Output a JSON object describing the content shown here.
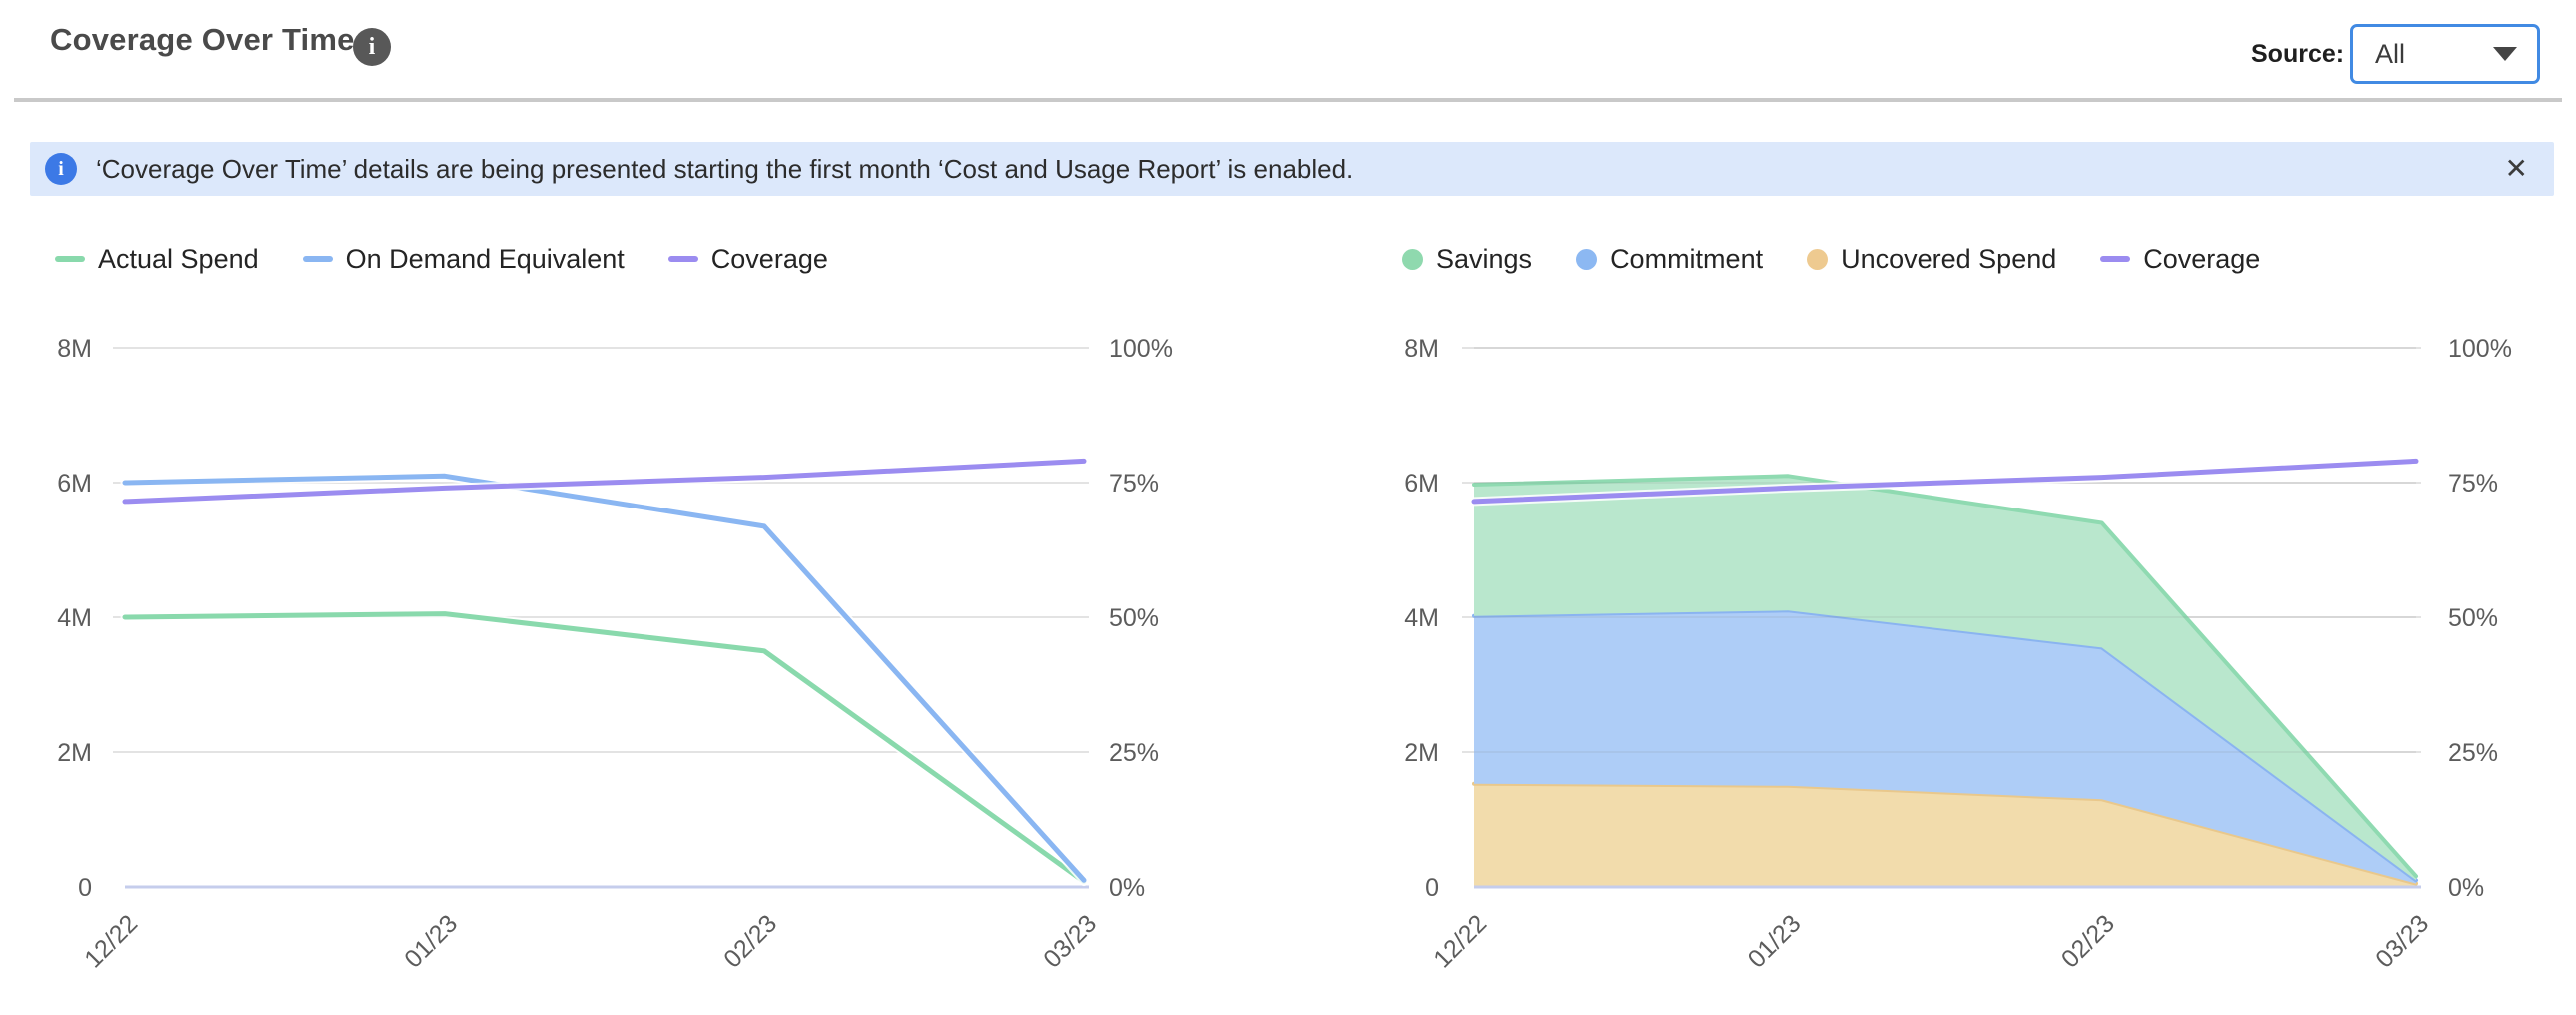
{
  "header": {
    "title": "Coverage Over Time",
    "info_glyph": "i",
    "source_label": "Source:",
    "source_value": "All"
  },
  "banner": {
    "info_glyph": "i",
    "text": "‘Coverage Over Time’ details are being presented starting the first month ‘Cost and Usage Report’ is enabled.",
    "close_glyph": "✕"
  },
  "colors": {
    "accent_blue": "#418ae3",
    "banner_bg": "#dce8fb",
    "banner_icon_blue": "#3c79e6",
    "divider_gray": "#c9c9c9",
    "gridline": "#e3e3e3",
    "baseline": "#c5cdec",
    "axis_text": "#5c5c5c",
    "series_green": "#89d9ac",
    "series_blue": "#8ab6f2",
    "series_purple": "#9b8cf0",
    "series_orange": "#ecc992"
  },
  "chart_data": [
    {
      "type": "line",
      "categories": [
        "12/22",
        "01/23",
        "02/23",
        "03/23"
      ],
      "series": [
        {
          "name": "Actual Spend",
          "type": "line",
          "axis": "left",
          "color": "#89d9ac",
          "values": [
            4000000,
            4050000,
            3500000,
            80000
          ]
        },
        {
          "name": "On Demand Equivalent",
          "type": "line",
          "axis": "left",
          "color": "#8ab6f2",
          "values": [
            6000000,
            6100000,
            5350000,
            100000
          ]
        },
        {
          "name": "Coverage",
          "type": "line",
          "axis": "right",
          "color": "#9b8cf0",
          "values": [
            71.5,
            74,
            76,
            79
          ]
        }
      ],
      "left_axis": {
        "range": [
          0,
          8000000
        ],
        "tick_values": [
          0,
          2000000,
          4000000,
          6000000,
          8000000
        ],
        "tick_labels": [
          "0",
          "2M",
          "4M",
          "6M",
          "8M"
        ]
      },
      "right_axis": {
        "range": [
          0,
          100
        ],
        "tick_values": [
          0,
          25,
          50,
          75,
          100
        ],
        "tick_labels": [
          "0%",
          "25%",
          "50%",
          "75%",
          "100%"
        ]
      },
      "legend": [
        {
          "label": "Actual Spend",
          "marker": "dash",
          "color": "#89d9ac"
        },
        {
          "label": "On Demand Equivalent",
          "marker": "dash",
          "color": "#8ab6f2"
        },
        {
          "label": "Coverage",
          "marker": "dash",
          "color": "#9b8cf0"
        }
      ],
      "grid": true,
      "legend_position": "top-left"
    },
    {
      "type": "area",
      "stacked": true,
      "categories": [
        "12/22",
        "01/23",
        "02/23",
        "03/23"
      ],
      "series": [
        {
          "name": "Uncovered Spend",
          "type": "area",
          "axis": "left",
          "fill": "#f2dcac",
          "stroke": "#e9c88c",
          "values": [
            1530000,
            1500000,
            1300000,
            50000
          ]
        },
        {
          "name": "Commitment",
          "type": "area",
          "axis": "left",
          "fill": "#aecdf7",
          "stroke": "#8ab4f0",
          "values": [
            2490000,
            2600000,
            2250000,
            50000
          ]
        },
        {
          "name": "Savings",
          "type": "area",
          "axis": "left",
          "fill": "#b9e7cd",
          "stroke": "#8fdab1",
          "values": [
            1950000,
            2000000,
            1850000,
            60000
          ]
        },
        {
          "name": "Coverage",
          "type": "line",
          "axis": "right",
          "color": "#9b8cf0",
          "values": [
            71.5,
            74,
            76,
            79
          ]
        }
      ],
      "left_axis": {
        "range": [
          0,
          8000000
        ],
        "tick_values": [
          0,
          2000000,
          4000000,
          6000000,
          8000000
        ],
        "tick_labels": [
          "0",
          "2M",
          "4M",
          "6M",
          "8M"
        ]
      },
      "right_axis": {
        "range": [
          0,
          100
        ],
        "tick_values": [
          0,
          25,
          50,
          75,
          100
        ],
        "tick_labels": [
          "0%",
          "25%",
          "50%",
          "75%",
          "100%"
        ]
      },
      "legend": [
        {
          "label": "Savings",
          "marker": "dot",
          "color": "#8fd9ae"
        },
        {
          "label": "Commitment",
          "marker": "dot",
          "color": "#8cb8f2"
        },
        {
          "label": "Uncovered Spend",
          "marker": "dot",
          "color": "#eeca90"
        },
        {
          "label": "Coverage",
          "marker": "dash",
          "color": "#9b8cf0"
        }
      ],
      "grid": true,
      "legend_position": "top-left"
    }
  ]
}
